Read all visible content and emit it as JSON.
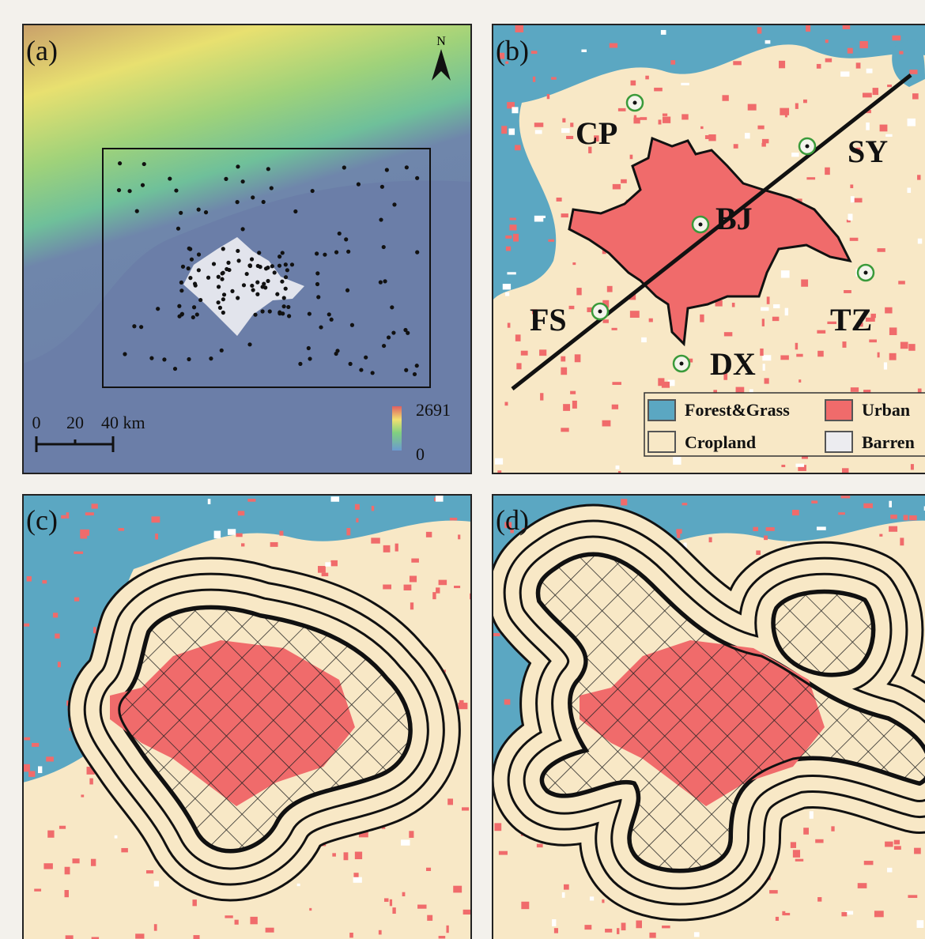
{
  "panels": [
    {
      "label": "(a)",
      "north": "N",
      "scale_labels": [
        "0",
        "20",
        "40 km"
      ],
      "colorbar": {
        "max": 2691,
        "min": 0
      }
    },
    {
      "label": "(b)",
      "sites": [
        "CP",
        "SY",
        "BJ",
        "FS",
        "TZ",
        "DX"
      ],
      "legend": [
        "Forest&Grass",
        "Urban",
        "Cropland",
        "Barren"
      ]
    },
    {
      "label": "(c)"
    },
    {
      "label": "(d)"
    }
  ]
}
